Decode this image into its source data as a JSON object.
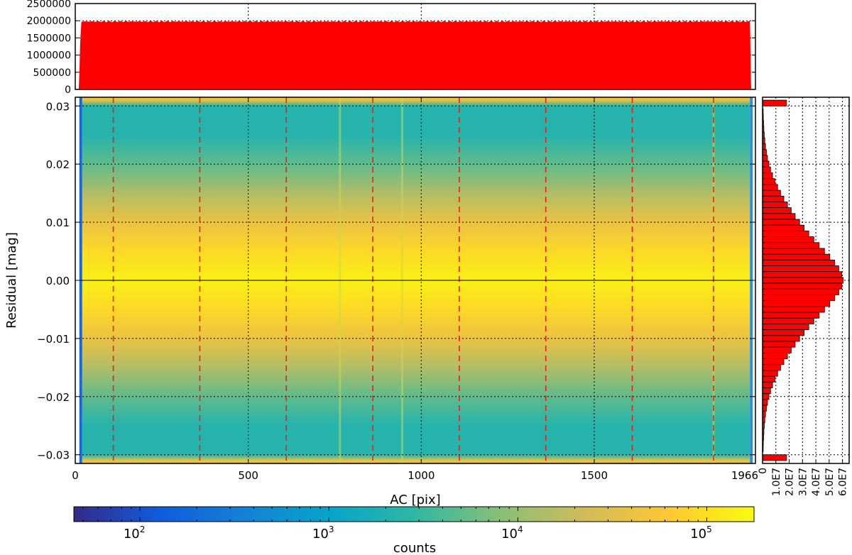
{
  "chart_data": [
    {
      "type": "bar",
      "panel": "top-histogram",
      "xlim": [
        0,
        1966
      ],
      "ylim": [
        0,
        2500000
      ],
      "yticks": [
        "0",
        "500000",
        "1000000",
        "1500000",
        "2000000",
        "2500000"
      ],
      "ramp": [
        [
          10,
          0
        ],
        [
          12,
          500000
        ],
        [
          14,
          1300000
        ],
        [
          16,
          1700000
        ],
        [
          18,
          2000000
        ]
      ],
      "plateau": 2000000,
      "fall": [
        [
          1950,
          2000000
        ],
        [
          1951,
          1500000
        ],
        [
          1952,
          700000
        ],
        [
          1953,
          200000
        ],
        [
          1954,
          0
        ]
      ],
      "color": "#ff0000"
    },
    {
      "type": "heatmap",
      "panel": "main",
      "xlabel": "AC [pix]",
      "ylabel": "Residual [mag]",
      "xlim": [
        0,
        1966
      ],
      "ylim": [
        -0.0315,
        0.0315
      ],
      "xticks": [
        "0",
        "500",
        "1000",
        "1500",
        "1966"
      ],
      "xtick_values": [
        0,
        500,
        1000,
        1500,
        1966
      ],
      "yticks": [
        "−0.03",
        "−0.02",
        "−0.01",
        "0.00",
        "0.01",
        "0.02",
        "0.03"
      ],
      "ytick_values": [
        -0.03,
        -0.02,
        -0.01,
        0.0,
        0.01,
        0.02,
        0.03
      ],
      "data_x_range": [
        20,
        1950
      ],
      "profile": [
        {
          "y": 0.031,
          "log_counts": 4.6
        },
        {
          "y": 0.03,
          "log_counts": 3.35
        },
        {
          "y": 0.025,
          "log_counts": 3.35
        },
        {
          "y": 0.02,
          "log_counts": 3.7
        },
        {
          "y": 0.015,
          "log_counts": 4.15
        },
        {
          "y": 0.01,
          "log_counts": 4.6
        },
        {
          "y": 0.005,
          "log_counts": 4.95
        },
        {
          "y": 0.0,
          "log_counts": 5.15
        },
        {
          "y": -0.005,
          "log_counts": 4.95
        },
        {
          "y": -0.01,
          "log_counts": 4.6
        },
        {
          "y": -0.015,
          "log_counts": 4.15
        },
        {
          "y": -0.02,
          "log_counts": 3.7
        },
        {
          "y": -0.025,
          "log_counts": 3.35
        },
        {
          "y": -0.03,
          "log_counts": 3.35
        },
        {
          "y": -0.031,
          "log_counts": 4.6
        }
      ],
      "bright_columns": [
        765,
        945,
        1845
      ],
      "dashed_lines_x": [
        110,
        360,
        610,
        860,
        1110,
        1360,
        1610,
        1845
      ],
      "zero_line_y": 0.0,
      "grid": true
    },
    {
      "type": "bar",
      "panel": "right-histogram",
      "orientation": "horizontal",
      "xlim": [
        0,
        6.5
      ],
      "xticks": [
        "0",
        "1.0E7",
        "2.0E7",
        "3.0E7",
        "4.0E7",
        "5.0E7",
        "6.0E7"
      ],
      "xtick_values": [
        0,
        1,
        2,
        3,
        4,
        5,
        6
      ],
      "unit_note": "values in units of 1E7",
      "bin_width": 0.001,
      "bins": [
        {
          "y": 0.0305,
          "value": 1.8
        },
        {
          "y": 0.029,
          "value": 0.05
        },
        {
          "y": 0.028,
          "value": 0.06
        },
        {
          "y": 0.027,
          "value": 0.08
        },
        {
          "y": 0.026,
          "value": 0.1
        },
        {
          "y": 0.025,
          "value": 0.13
        },
        {
          "y": 0.024,
          "value": 0.17
        },
        {
          "y": 0.023,
          "value": 0.22
        },
        {
          "y": 0.022,
          "value": 0.29
        },
        {
          "y": 0.021,
          "value": 0.37
        },
        {
          "y": 0.02,
          "value": 0.48
        },
        {
          "y": 0.019,
          "value": 0.6
        },
        {
          "y": 0.018,
          "value": 0.75
        },
        {
          "y": 0.017,
          "value": 0.93
        },
        {
          "y": 0.016,
          "value": 1.13
        },
        {
          "y": 0.015,
          "value": 1.35
        },
        {
          "y": 0.014,
          "value": 1.6
        },
        {
          "y": 0.013,
          "value": 1.87
        },
        {
          "y": 0.012,
          "value": 2.15
        },
        {
          "y": 0.011,
          "value": 2.45
        },
        {
          "y": 0.01,
          "value": 2.78
        },
        {
          "y": 0.009,
          "value": 3.12
        },
        {
          "y": 0.008,
          "value": 3.47
        },
        {
          "y": 0.007,
          "value": 3.85
        },
        {
          "y": 0.006,
          "value": 4.25
        },
        {
          "y": 0.005,
          "value": 4.65
        },
        {
          "y": 0.004,
          "value": 5.05
        },
        {
          "y": 0.003,
          "value": 5.42
        },
        {
          "y": 0.002,
          "value": 5.72
        },
        {
          "y": 0.001,
          "value": 5.95
        },
        {
          "y": 0.0,
          "value": 6.05
        },
        {
          "y": -0.001,
          "value": 5.95
        },
        {
          "y": -0.002,
          "value": 5.72
        },
        {
          "y": -0.003,
          "value": 5.42
        },
        {
          "y": -0.004,
          "value": 5.05
        },
        {
          "y": -0.005,
          "value": 4.65
        },
        {
          "y": -0.006,
          "value": 4.25
        },
        {
          "y": -0.007,
          "value": 3.85
        },
        {
          "y": -0.008,
          "value": 3.47
        },
        {
          "y": -0.009,
          "value": 3.12
        },
        {
          "y": -0.01,
          "value": 2.78
        },
        {
          "y": -0.011,
          "value": 2.45
        },
        {
          "y": -0.012,
          "value": 2.15
        },
        {
          "y": -0.013,
          "value": 1.87
        },
        {
          "y": -0.014,
          "value": 1.6
        },
        {
          "y": -0.015,
          "value": 1.35
        },
        {
          "y": -0.016,
          "value": 1.13
        },
        {
          "y": -0.017,
          "value": 0.93
        },
        {
          "y": -0.018,
          "value": 0.75
        },
        {
          "y": -0.019,
          "value": 0.6
        },
        {
          "y": -0.02,
          "value": 0.48
        },
        {
          "y": -0.021,
          "value": 0.37
        },
        {
          "y": -0.022,
          "value": 0.29
        },
        {
          "y": -0.023,
          "value": 0.22
        },
        {
          "y": -0.024,
          "value": 0.17
        },
        {
          "y": -0.025,
          "value": 0.13
        },
        {
          "y": -0.026,
          "value": 0.1
        },
        {
          "y": -0.027,
          "value": 0.08
        },
        {
          "y": -0.028,
          "value": 0.06
        },
        {
          "y": -0.029,
          "value": 0.05
        },
        {
          "y": -0.0305,
          "value": 1.8
        }
      ],
      "color": "#ff0000"
    },
    {
      "type": "colorbar",
      "panel": "colorbar",
      "label": "counts",
      "scale": "log",
      "range_log10": [
        1.65,
        5.25
      ],
      "tick_base": "10",
      "ticks": [
        {
          "exp": "2",
          "log": 2
        },
        {
          "exp": "3",
          "log": 3
        },
        {
          "exp": "4",
          "log": 4
        },
        {
          "exp": "5",
          "log": 5
        }
      ],
      "colormap": [
        "#352a87",
        "#0f5cdd",
        "#1481d6",
        "#06a4ca",
        "#2eb7a4",
        "#87bf77",
        "#d1bb59",
        "#fec832",
        "#f9fb0e"
      ]
    }
  ]
}
